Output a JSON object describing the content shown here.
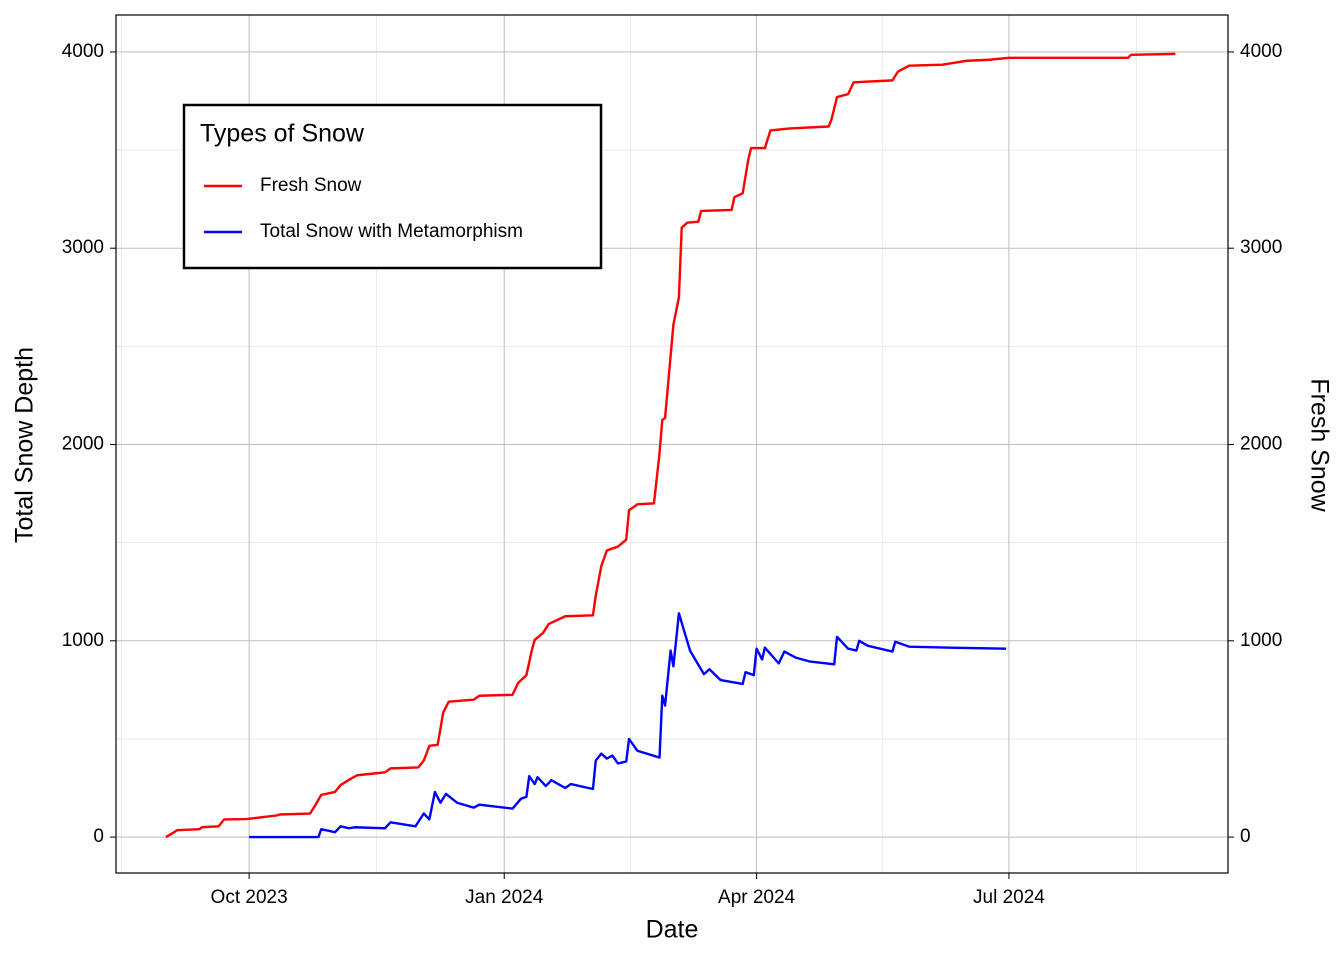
{
  "chart_data": {
    "type": "line",
    "x_label": "Date",
    "y_label": "Total Snow Depth",
    "y2_label": "Fresh Snow",
    "legend_title": "Types of Snow",
    "legend": "top-left",
    "grid": true,
    "xlim": [
      "2023-08-14",
      "2024-09-18"
    ],
    "xticks": [
      {
        "value": "2023-10-01",
        "label": "Oct 2023"
      },
      {
        "value": "2024-01-01",
        "label": "Jan 2024"
      },
      {
        "value": "2024-04-01",
        "label": "Apr 2024"
      },
      {
        "value": "2024-07-01",
        "label": "Jul 2024"
      }
    ],
    "ylim": [
      -183,
      4188
    ],
    "yticks": [
      0,
      1000,
      2000,
      3000,
      4000
    ],
    "y2lim": [
      -183,
      4188
    ],
    "y2ticks": [
      0,
      1000,
      2000,
      3000,
      4000
    ],
    "series": [
      {
        "name": "Fresh Snow",
        "color": "#ff0000",
        "axis": "y2",
        "x": [
          "2023-09-01",
          "2023-09-04",
          "2023-09-05",
          "2023-09-13",
          "2023-09-14",
          "2023-09-20",
          "2023-09-22",
          "2023-09-30",
          "2023-10-05",
          "2023-10-11",
          "2023-10-12",
          "2023-10-23",
          "2023-10-25",
          "2023-10-27",
          "2023-11-01",
          "2023-11-03",
          "2023-11-07",
          "2023-11-09",
          "2023-11-19",
          "2023-11-21",
          "2023-12-01",
          "2023-12-03",
          "2023-12-05",
          "2023-12-08",
          "2023-12-10",
          "2023-12-12",
          "2023-12-21",
          "2023-12-23",
          "2024-01-04",
          "2024-01-06",
          "2024-01-09",
          "2024-01-11",
          "2024-01-12",
          "2024-01-15",
          "2024-01-17",
          "2024-01-23",
          "2024-02-02",
          "2024-02-03",
          "2024-02-05",
          "2024-02-07",
          "2024-02-11",
          "2024-02-14",
          "2024-02-15",
          "2024-02-18",
          "2024-02-24",
          "2024-02-26",
          "2024-02-27",
          "2024-02-28",
          "2024-03-02",
          "2024-03-04",
          "2024-03-05",
          "2024-03-07",
          "2024-03-11",
          "2024-03-12",
          "2024-03-23",
          "2024-03-24",
          "2024-03-27",
          "2024-03-29",
          "2024-03-30",
          "2024-04-04",
          "2024-04-06",
          "2024-04-13",
          "2024-04-27",
          "2024-04-28",
          "2024-04-30",
          "2024-05-04",
          "2024-05-06",
          "2024-05-20",
          "2024-05-22",
          "2024-05-26",
          "2024-06-07",
          "2024-06-16",
          "2024-06-24",
          "2024-07-01",
          "2024-08-13",
          "2024-08-14",
          "2024-08-30"
        ],
        "values": [
          0,
          25,
          35,
          40,
          50,
          55,
          90,
          92,
          100,
          110,
          115,
          120,
          165,
          215,
          230,
          265,
          300,
          315,
          330,
          350,
          355,
          390,
          465,
          470,
          635,
          690,
          700,
          720,
          725,
          785,
          825,
          955,
          1005,
          1040,
          1085,
          1125,
          1130,
          1230,
          1380,
          1460,
          1480,
          1515,
          1665,
          1695,
          1700,
          1955,
          2125,
          2135,
          2610,
          2750,
          3105,
          3130,
          3135,
          3190,
          3195,
          3260,
          3280,
          3450,
          3510,
          3510,
          3600,
          3610,
          3620,
          3655,
          3770,
          3785,
          3845,
          3855,
          3900,
          3930,
          3935,
          3955,
          3960,
          3970,
          3970,
          3985,
          3990
        ]
      },
      {
        "name": "Total Snow with Metamorphism",
        "color": "#0000ff",
        "x": [
          "2023-10-01",
          "2023-10-26",
          "2023-10-27",
          "2023-11-01",
          "2023-11-03",
          "2023-11-06",
          "2023-11-08",
          "2023-11-19",
          "2023-11-21",
          "2023-11-30",
          "2023-12-03",
          "2023-12-05",
          "2023-12-07",
          "2023-12-09",
          "2023-12-11",
          "2023-12-15",
          "2023-12-21",
          "2023-12-23",
          "2024-01-04",
          "2024-01-07",
          "2024-01-09",
          "2024-01-10",
          "2024-01-12",
          "2024-01-13",
          "2024-01-16",
          "2024-01-18",
          "2024-01-23",
          "2024-01-25",
          "2024-02-02",
          "2024-02-03",
          "2024-02-05",
          "2024-02-07",
          "2024-02-09",
          "2024-02-11",
          "2024-02-14",
          "2024-02-15",
          "2024-02-18",
          "2024-02-26",
          "2024-02-27",
          "2024-02-28",
          "2024-03-01",
          "2024-03-02",
          "2024-03-04",
          "2024-03-08",
          "2024-03-13",
          "2024-03-15",
          "2024-03-19",
          "2024-03-27",
          "2024-03-28",
          "2024-03-31",
          "2024-04-01",
          "2024-04-03",
          "2024-04-04",
          "2024-04-09",
          "2024-04-11",
          "2024-04-15",
          "2024-04-20",
          "2024-04-29",
          "2024-04-30",
          "2024-05-04",
          "2024-05-07",
          "2024-05-08",
          "2024-05-11",
          "2024-05-20",
          "2024-05-21",
          "2024-05-26",
          "2024-06-10",
          "2024-06-30"
        ],
        "values": [
          0,
          0,
          40,
          25,
          55,
          45,
          50,
          45,
          75,
          55,
          120,
          90,
          230,
          175,
          220,
          175,
          150,
          165,
          145,
          195,
          205,
          310,
          270,
          305,
          260,
          290,
          250,
          270,
          245,
          390,
          425,
          400,
          415,
          375,
          385,
          500,
          440,
          405,
          720,
          670,
          950,
          870,
          1140,
          950,
          830,
          855,
          800,
          780,
          840,
          825,
          960,
          905,
          965,
          885,
          945,
          915,
          895,
          880,
          1020,
          960,
          950,
          1000,
          975,
          945,
          995,
          970,
          965,
          960
        ]
      }
    ]
  }
}
